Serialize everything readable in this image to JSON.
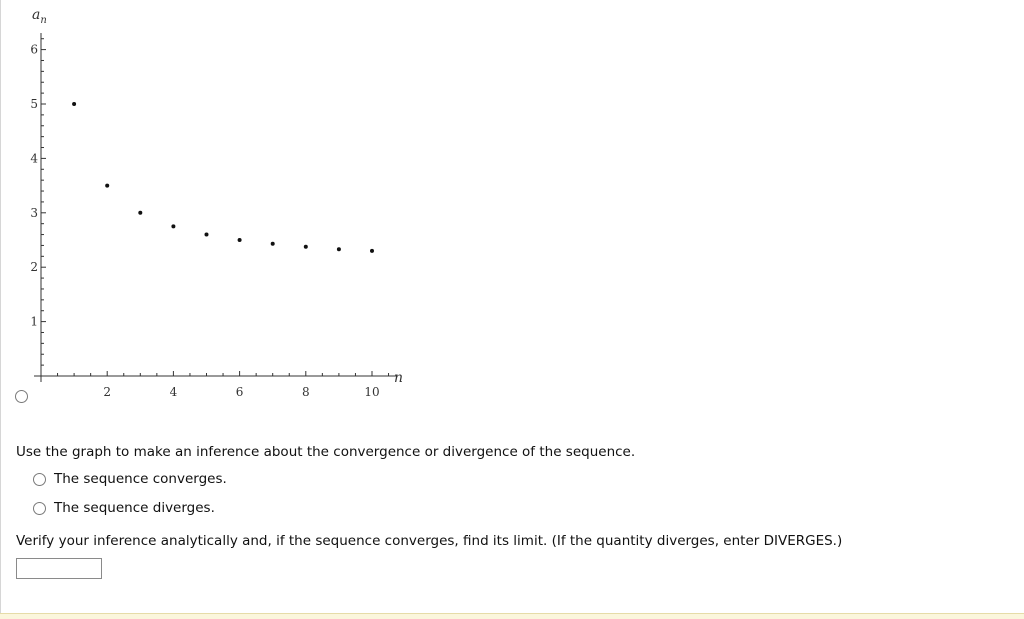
{
  "chart_data": {
    "type": "scatter",
    "x": [
      1,
      2,
      3,
      4,
      5,
      6,
      7,
      8,
      9,
      10
    ],
    "y": [
      5.0,
      3.5,
      3.0,
      2.75,
      2.6,
      2.5,
      2.43,
      2.375,
      2.33,
      2.3
    ],
    "xlabel": "n",
    "ylabel": "a_n",
    "xlim": [
      0,
      10.5
    ],
    "ylim": [
      0,
      6.2
    ],
    "x_ticks": [
      2,
      4,
      6,
      8,
      10
    ],
    "y_ticks": [
      1,
      2,
      3,
      4,
      5,
      6
    ],
    "grid": false,
    "marker_color": "#111111"
  },
  "graph_option": {
    "selected": false
  },
  "question": {
    "prompt": "Use the graph to make an inference about the convergence or divergence of the sequence.",
    "options": [
      {
        "label": "The sequence converges.",
        "selected": false
      },
      {
        "label": "The sequence diverges.",
        "selected": false
      }
    ]
  },
  "verify": {
    "text": "Verify your inference analytically and, if the sequence converges, find its limit. (If the quantity diverges, enter DIVERGES.)",
    "answer_value": ""
  },
  "colors": {
    "axis": "#333333",
    "points": "#111111",
    "bottom_bar": "#fbf6dc"
  }
}
